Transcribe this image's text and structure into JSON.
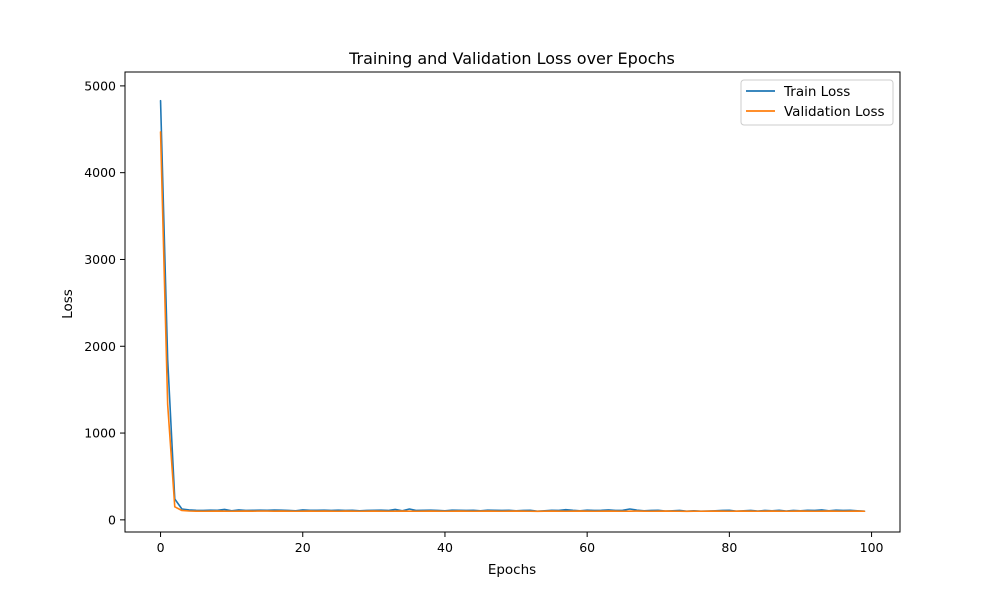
{
  "chart_data": {
    "type": "line",
    "title": "Training and Validation Loss over Epochs",
    "xlabel": "Epochs",
    "ylabel": "Loss",
    "xlim": [
      -5,
      104
    ],
    "ylim": [
      -140,
      5160
    ],
    "x_ticks": [
      0,
      20,
      40,
      60,
      80,
      100
    ],
    "y_ticks": [
      0,
      1000,
      2000,
      3000,
      4000,
      5000
    ],
    "grid": false,
    "legend_position": "top-right",
    "x": [
      0,
      1,
      2,
      3,
      4,
      5,
      6,
      7,
      8,
      9,
      10,
      11,
      12,
      13,
      14,
      15,
      16,
      17,
      18,
      19,
      20,
      21,
      22,
      23,
      24,
      25,
      26,
      27,
      28,
      29,
      30,
      31,
      32,
      33,
      34,
      35,
      36,
      37,
      38,
      39,
      40,
      41,
      42,
      43,
      44,
      45,
      46,
      47,
      48,
      49,
      50,
      51,
      52,
      53,
      54,
      55,
      56,
      57,
      58,
      59,
      60,
      61,
      62,
      63,
      64,
      65,
      66,
      67,
      68,
      69,
      70,
      71,
      72,
      73,
      74,
      75,
      76,
      77,
      78,
      79,
      80,
      81,
      82,
      83,
      84,
      85,
      86,
      87,
      88,
      89,
      90,
      91,
      92,
      93,
      94,
      95,
      96,
      97,
      98,
      99
    ],
    "series": [
      {
        "name": "Train Loss",
        "color": "#1f77b4",
        "values": [
          4830,
          1850,
          240,
          125,
          115,
          110,
          108,
          112,
          110,
          120,
          105,
          115,
          108,
          110,
          112,
          110,
          113,
          112,
          108,
          105,
          115,
          110,
          110,
          112,
          108,
          112,
          108,
          110,
          105,
          108,
          110,
          112,
          108,
          120,
          105,
          125,
          108,
          110,
          112,
          108,
          105,
          112,
          110,
          108,
          110,
          105,
          112,
          110,
          108,
          110,
          105,
          108,
          110,
          100,
          105,
          110,
          108,
          118,
          110,
          105,
          112,
          108,
          110,
          115,
          108,
          110,
          125,
          112,
          105,
          108,
          110,
          102,
          105,
          108,
          100,
          105,
          100,
          102,
          105,
          108,
          110,
          100,
          105,
          108,
          102,
          108,
          105,
          110,
          102,
          108,
          105,
          110,
          108,
          115,
          105,
          112,
          108,
          110,
          105,
          100
        ]
      },
      {
        "name": "Validation Loss",
        "color": "#ff7f0e",
        "values": [
          4470,
          1330,
          150,
          108,
          102,
          100,
          99,
          100,
          101,
          100,
          99,
          100,
          101,
          100,
          102,
          101,
          100,
          101,
          100,
          99,
          100,
          101,
          100,
          101,
          100,
          99,
          101,
          100,
          99,
          100,
          101,
          100,
          99,
          100,
          101,
          100,
          99,
          100,
          101,
          100,
          99,
          100,
          101,
          100,
          99,
          100,
          101,
          100,
          99,
          100,
          101,
          100,
          99,
          98,
          100,
          101,
          100,
          99,
          100,
          101,
          100,
          99,
          100,
          101,
          100,
          99,
          100,
          101,
          100,
          99,
          100,
          101,
          100,
          99,
          98,
          100,
          99,
          100,
          101,
          100,
          99,
          100,
          101,
          100,
          99,
          100,
          101,
          100,
          99,
          100,
          101,
          100,
          99,
          100,
          101,
          100,
          99,
          100,
          101,
          99
        ]
      }
    ]
  }
}
